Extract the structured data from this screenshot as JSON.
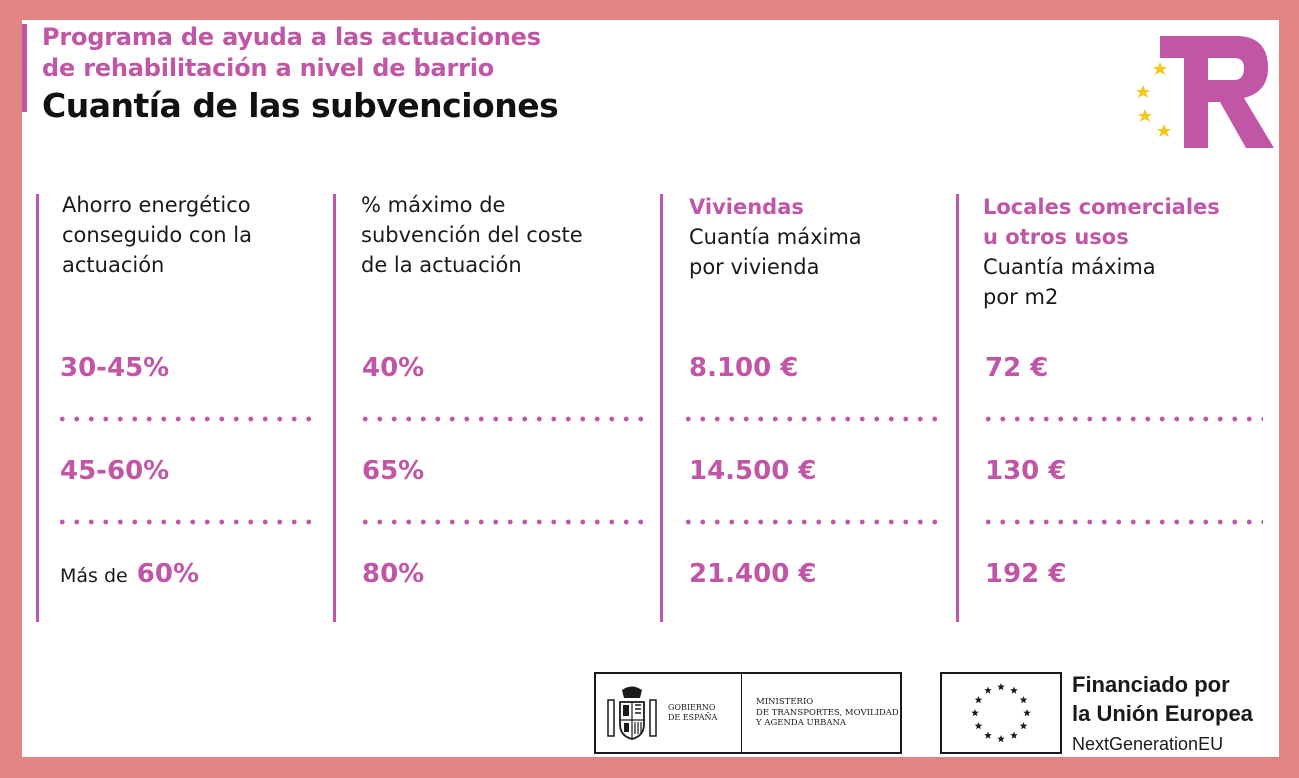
{
  "header": {
    "subtitle_line1": "Programa de ayuda a las actuaciones",
    "subtitle_line2": "de rehabilitación a nivel de barrio",
    "title": "Cuantía de las subvenciones"
  },
  "logo": {
    "icon": "tr-logo-with-eu-stars",
    "letters": "TR",
    "brand_color": "#c155a6",
    "star_color": "#f5c518"
  },
  "columns": [
    {
      "header_lines": [
        "Ahorro energético",
        "conseguido con la",
        "actuación"
      ],
      "values": [
        "30-45%",
        "45-60%",
        "60%"
      ],
      "last_prefix": "Más de"
    },
    {
      "header_lines": [
        "% máximo de",
        "subvención del coste",
        "de la actuación"
      ],
      "values": [
        "40%",
        "65%",
        "80%"
      ]
    },
    {
      "accent_lines": [
        "Viviendas"
      ],
      "header_lines": [
        "Cuantía máxima",
        "por vivienda"
      ],
      "values": [
        "8.100 €",
        "14.500 €",
        "21.400 €"
      ]
    },
    {
      "accent_lines": [
        "Locales comerciales",
        "u otros usos"
      ],
      "header_lines": [
        "Cuantía máxima",
        "por m2"
      ],
      "values": [
        "72 €",
        "130 €",
        "192 €"
      ]
    }
  ],
  "footer": {
    "gov_lines": [
      "GOBIERNO",
      "DE ESPAÑA"
    ],
    "ministry_lines": [
      "MINISTERIO",
      "DE TRANSPORTES, MOVILIDAD",
      "Y AGENDA URBANA"
    ],
    "eu_line1": "Financiado por",
    "eu_line2": "la Unión Europea",
    "eu_line3": "NextGenerationEU",
    "gov_icon": "spain-coat-of-arms-icon",
    "eu_icon": "eu-flag-stars-icon"
  },
  "colors": {
    "accent": "#c155a6",
    "frame": "#e08582",
    "text": "#1a1a1a"
  }
}
